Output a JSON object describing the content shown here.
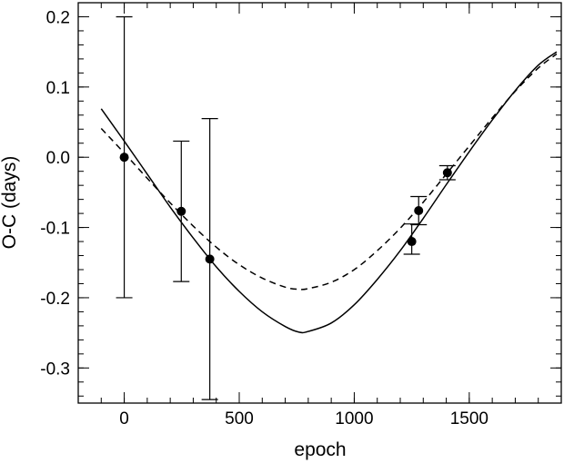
{
  "chart_data": {
    "type": "scatter",
    "title": "",
    "xlabel": "epoch",
    "ylabel": "O-C (days)",
    "xlim": [
      -200,
      1900
    ],
    "ylim": [
      -0.35,
      0.22
    ],
    "x_ticks": [
      {
        "value": 0,
        "label": "0"
      },
      {
        "value": 500,
        "label": "500"
      },
      {
        "value": 1000,
        "label": "1000"
      },
      {
        "value": 1500,
        "label": "1500"
      }
    ],
    "x_minor_step": 100,
    "y_ticks": [
      {
        "value": 0.2,
        "label": "0.2"
      },
      {
        "value": 0.1,
        "label": "0.1"
      },
      {
        "value": 0.0,
        "label": "0.0"
      },
      {
        "value": -0.1,
        "label": "-0.1"
      },
      {
        "value": -0.2,
        "label": "-0.2"
      },
      {
        "value": -0.3,
        "label": "-0.3"
      }
    ],
    "y_minor_step": 0.02,
    "grid": false,
    "points": [
      {
        "x": 0,
        "y": 0.0,
        "yerr_low": -0.2,
        "yerr_high": 0.2
      },
      {
        "x": 248,
        "y": -0.077,
        "yerr_low": -0.177,
        "yerr_high": 0.023
      },
      {
        "x": 372,
        "y": -0.145,
        "yerr_low": -0.345,
        "yerr_high": 0.055
      },
      {
        "x": 1250,
        "y": -0.12,
        "yerr_low": -0.138,
        "yerr_high": -0.095
      },
      {
        "x": 1280,
        "y": -0.076,
        "yerr_low": -0.096,
        "yerr_high": -0.056
      },
      {
        "x": 1405,
        "y": -0.022,
        "yerr_low": -0.032,
        "yerr_high": -0.012
      }
    ],
    "curves": [
      {
        "style": "solid",
        "x": [
          -100,
          0,
          100,
          200,
          300,
          400,
          500,
          600,
          700,
          760,
          800,
          900,
          1000,
          1100,
          1200,
          1300,
          1400,
          1500,
          1600,
          1700,
          1800,
          1880
        ],
        "y": [
          0.069,
          0.023,
          -0.024,
          -0.071,
          -0.115,
          -0.156,
          -0.191,
          -0.22,
          -0.241,
          -0.249,
          -0.248,
          -0.236,
          -0.21,
          -0.174,
          -0.133,
          -0.087,
          -0.039,
          0.008,
          0.053,
          0.095,
          0.131,
          0.15
        ]
      },
      {
        "style": "dashed",
        "x": [
          -100,
          0,
          100,
          200,
          300,
          400,
          500,
          600,
          700,
          760,
          800,
          900,
          1000,
          1100,
          1200,
          1300,
          1400,
          1500,
          1600,
          1700,
          1800,
          1880
        ],
        "y": [
          0.041,
          0.006,
          -0.03,
          -0.065,
          -0.098,
          -0.128,
          -0.153,
          -0.172,
          -0.185,
          -0.188,
          -0.187,
          -0.178,
          -0.16,
          -0.133,
          -0.101,
          -0.064,
          -0.024,
          0.016,
          0.056,
          0.094,
          0.127,
          0.147
        ]
      }
    ]
  }
}
